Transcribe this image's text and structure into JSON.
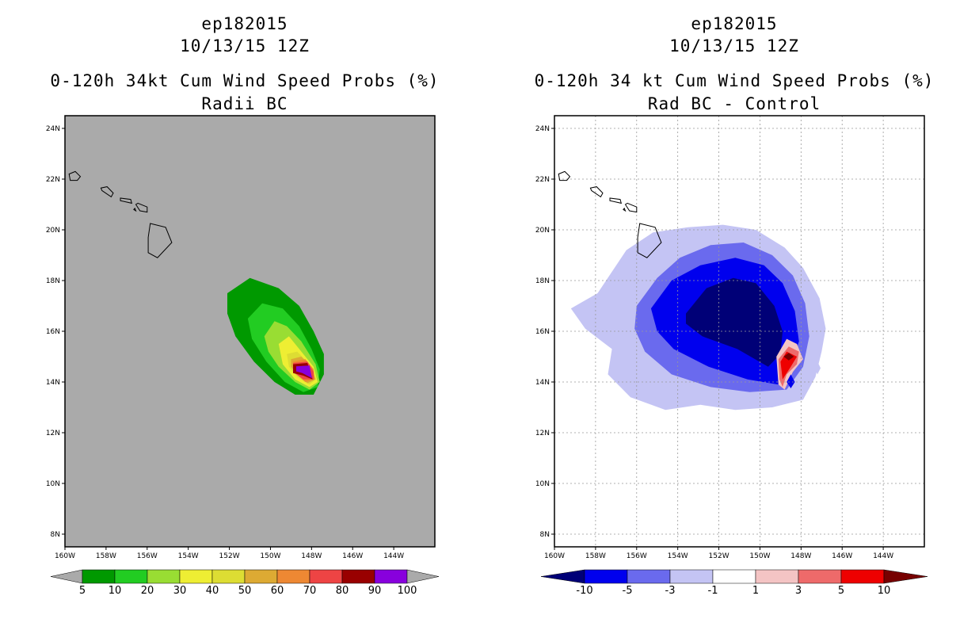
{
  "panels": [
    {
      "title_line1": "ep182015",
      "title_line2": "10/13/15 12Z",
      "title_line3": "0-120h 34kt Cum Wind Speed Probs (%)",
      "title_line4": "Radii BC",
      "background": "#aaaaaa",
      "grid": false
    },
    {
      "title_line1": "ep182015",
      "title_line2": "10/13/15 12Z",
      "title_line3": "0-120h 34 kt Cum Wind Speed Probs (%)",
      "title_line4": "Rad BC - Control",
      "background": "#ffffff",
      "grid": true
    }
  ],
  "chart_data": [
    {
      "type": "contour-map",
      "title": "0-120h 34kt Cum Wind Speed Probs (%)",
      "subtitle": "Radii BC",
      "storm": "ep182015",
      "valid": "10/13/15 12Z",
      "lon_ticks": [
        "160W",
        "158W",
        "156W",
        "154W",
        "152W",
        "150W",
        "148W",
        "146W",
        "144W"
      ],
      "lat_ticks": [
        "24N",
        "22N",
        "20N",
        "18N",
        "16N",
        "14N",
        "12N",
        "10N",
        "8N"
      ],
      "lon_range": [
        -160,
        -142
      ],
      "lat_range": [
        7.5,
        24.5
      ],
      "colorbar": {
        "labels": [
          "5",
          "10",
          "20",
          "30",
          "40",
          "50",
          "60",
          "70",
          "80",
          "90",
          "100"
        ],
        "colors": [
          "#009900",
          "#22cc22",
          "#99dd33",
          "#eeee33",
          "#dddd33",
          "#ddaa33",
          "#ee8833",
          "#ee4444",
          "#990000",
          "#8800dd"
        ],
        "end_colors": [
          "#aaaaaa",
          "#aaaaaa"
        ]
      },
      "contours": [
        {
          "level": 5,
          "color": "#009900",
          "points": [
            [
              -152.1,
              17.5
            ],
            [
              -151.0,
              18.1
            ],
            [
              -149.6,
              17.7
            ],
            [
              -148.6,
              17.0
            ],
            [
              -147.9,
              16.0
            ],
            [
              -147.4,
              15.1
            ],
            [
              -147.4,
              14.3
            ],
            [
              -147.9,
              13.5
            ],
            [
              -148.8,
              13.5
            ],
            [
              -149.8,
              14.0
            ],
            [
              -150.8,
              14.8
            ],
            [
              -151.7,
              15.8
            ],
            [
              -152.1,
              16.7
            ]
          ]
        },
        {
          "level": 10,
          "color": "#22cc22",
          "points": [
            [
              -151.1,
              16.5
            ],
            [
              -150.4,
              17.1
            ],
            [
              -149.4,
              16.9
            ],
            [
              -148.6,
              16.2
            ],
            [
              -148.0,
              15.3
            ],
            [
              -147.6,
              14.5
            ],
            [
              -147.7,
              13.8
            ],
            [
              -148.4,
              13.6
            ],
            [
              -149.3,
              14.0
            ],
            [
              -150.2,
              14.8
            ],
            [
              -150.9,
              15.7
            ]
          ]
        },
        {
          "level": 20,
          "color": "#99dd33",
          "points": [
            [
              -150.3,
              15.8
            ],
            [
              -149.8,
              16.4
            ],
            [
              -149.2,
              16.2
            ],
            [
              -148.5,
              15.6
            ],
            [
              -147.8,
              14.7
            ],
            [
              -147.6,
              14.0
            ],
            [
              -148.1,
              13.7
            ],
            [
              -148.8,
              14.0
            ],
            [
              -149.6,
              14.6
            ],
            [
              -150.1,
              15.2
            ]
          ]
        },
        {
          "level": 30,
          "color": "#eeee33",
          "points": [
            [
              -149.6,
              15.5
            ],
            [
              -149.1,
              15.8
            ],
            [
              -148.6,
              15.3
            ],
            [
              -147.9,
              14.6
            ],
            [
              -147.7,
              14.0
            ],
            [
              -148.1,
              13.8
            ],
            [
              -148.8,
              14.1
            ],
            [
              -149.4,
              14.7
            ]
          ]
        },
        {
          "level": 40,
          "color": "#dddd33",
          "points": [
            [
              -149.2,
              15.1
            ],
            [
              -148.7,
              15.2
            ],
            [
              -148.1,
              14.7
            ],
            [
              -147.8,
              14.1
            ],
            [
              -148.1,
              13.9
            ],
            [
              -148.7,
              14.2
            ],
            [
              -149.1,
              14.6
            ]
          ]
        },
        {
          "level": 50,
          "color": "#ddaa33",
          "points": [
            [
              -149.0,
              14.9
            ],
            [
              -148.5,
              15.0
            ],
            [
              -148.0,
              14.6
            ],
            [
              -147.8,
              14.1
            ],
            [
              -148.2,
              13.95
            ],
            [
              -148.7,
              14.3
            ],
            [
              -149.0,
              14.6
            ]
          ]
        },
        {
          "level": 60,
          "color": "#ee8833",
          "points": [
            [
              -148.9,
              14.8
            ],
            [
              -148.3,
              14.9
            ],
            [
              -147.9,
              14.5
            ],
            [
              -147.85,
              14.1
            ],
            [
              -148.3,
              14.0
            ],
            [
              -148.8,
              14.35
            ]
          ]
        },
        {
          "level": 70,
          "color": "#ee4444",
          "points": [
            [
              -148.9,
              14.75
            ],
            [
              -148.2,
              14.8
            ],
            [
              -147.9,
              14.4
            ],
            [
              -147.9,
              14.1
            ],
            [
              -148.4,
              14.1
            ],
            [
              -148.9,
              14.4
            ]
          ]
        },
        {
          "level": 80,
          "color": "#990000",
          "points": [
            [
              -148.9,
              14.7
            ],
            [
              -148.2,
              14.75
            ],
            [
              -147.95,
              14.1
            ],
            [
              -148.4,
              14.25
            ],
            [
              -148.9,
              14.35
            ]
          ]
        },
        {
          "level": 90,
          "color": "#8800dd",
          "points": [
            [
              -148.75,
              14.62
            ],
            [
              -148.1,
              14.65
            ],
            [
              -147.98,
              14.15
            ],
            [
              -148.45,
              14.35
            ],
            [
              -148.75,
              14.42
            ]
          ]
        }
      ]
    },
    {
      "type": "contour-map",
      "title": "0-120h 34 kt Cum Wind Speed Probs (%)",
      "subtitle": "Rad BC - Control",
      "storm": "ep182015",
      "valid": "10/13/15 12Z",
      "lon_ticks": [
        "160W",
        "158W",
        "156W",
        "154W",
        "152W",
        "150W",
        "148W",
        "146W",
        "144W"
      ],
      "lat_ticks": [
        "24N",
        "22N",
        "20N",
        "18N",
        "16N",
        "14N",
        "12N",
        "10N",
        "8N"
      ],
      "lon_range": [
        -160,
        -142
      ],
      "lat_range": [
        7.5,
        24.5
      ],
      "colorbar": {
        "labels": [
          "-10",
          "-5",
          "-3",
          "-1",
          "1",
          "3",
          "5",
          "10"
        ],
        "colors": [
          "#0000ee",
          "#6a6aee",
          "#c4c4f4",
          "#ffffff",
          "#f4c4c4",
          "#ee6a6a",
          "#ee0000"
        ],
        "end_colors": [
          "#000077",
          "#770000"
        ]
      },
      "contours": [
        {
          "level": -1,
          "color": "#c4c4f4",
          "points": [
            [
              -157.9,
              17.5
            ],
            [
              -156.5,
              19.2
            ],
            [
              -155.2,
              19.9
            ],
            [
              -153.5,
              20.1
            ],
            [
              -151.8,
              20.2
            ],
            [
              -150.2,
              20.0
            ],
            [
              -148.8,
              19.3
            ],
            [
              -147.9,
              18.5
            ],
            [
              -147.1,
              17.3
            ],
            [
              -146.8,
              16.1
            ],
            [
              -147.0,
              15.2
            ],
            [
              -147.3,
              14.2
            ],
            [
              -147.9,
              13.3
            ],
            [
              -149.4,
              13.0
            ],
            [
              -151.2,
              12.9
            ],
            [
              -152.9,
              13.1
            ],
            [
              -154.6,
              12.9
            ],
            [
              -156.3,
              13.4
            ],
            [
              -157.4,
              14.3
            ],
            [
              -157.2,
              15.3
            ],
            [
              -158.5,
              16.1
            ],
            [
              -159.2,
              16.9
            ]
          ]
        },
        {
          "level": -3,
          "color": "#6a6aee",
          "points": [
            [
              -156.0,
              17.0
            ],
            [
              -155.0,
              18.1
            ],
            [
              -153.9,
              18.9
            ],
            [
              -152.4,
              19.4
            ],
            [
              -150.8,
              19.5
            ],
            [
              -149.4,
              19.0
            ],
            [
              -148.4,
              18.2
            ],
            [
              -147.8,
              17.1
            ],
            [
              -147.6,
              15.8
            ],
            [
              -147.9,
              14.6
            ],
            [
              -148.7,
              13.7
            ],
            [
              -150.5,
              13.6
            ],
            [
              -152.4,
              13.8
            ],
            [
              -154.3,
              14.3
            ],
            [
              -155.6,
              15.2
            ],
            [
              -156.1,
              16.1
            ]
          ]
        },
        {
          "level": -5,
          "color": "#0000ee",
          "points": [
            [
              -155.3,
              16.9
            ],
            [
              -154.3,
              18.0
            ],
            [
              -152.9,
              18.6
            ],
            [
              -151.2,
              18.9
            ],
            [
              -149.8,
              18.6
            ],
            [
              -148.9,
              17.9
            ],
            [
              -148.3,
              16.8
            ],
            [
              -148.1,
              15.6
            ],
            [
              -148.5,
              14.6
            ],
            [
              -149.1,
              13.9
            ],
            [
              -150.6,
              14.1
            ],
            [
              -152.5,
              14.6
            ],
            [
              -154.2,
              15.3
            ],
            [
              -155.0,
              16.0
            ]
          ]
        },
        {
          "level": -10,
          "color": "#000077",
          "points": [
            [
              -153.6,
              16.7
            ],
            [
              -152.6,
              17.7
            ],
            [
              -151.3,
              18.1
            ],
            [
              -150.2,
              17.9
            ],
            [
              -149.3,
              17.0
            ],
            [
              -148.9,
              16.0
            ],
            [
              -149.0,
              15.1
            ],
            [
              -149.6,
              14.6
            ],
            [
              -151.1,
              15.3
            ],
            [
              -152.8,
              15.8
            ],
            [
              -153.6,
              16.3
            ]
          ]
        },
        {
          "level": 1,
          "color": "#f4c4c4",
          "points": [
            [
              -149.2,
              15.0
            ],
            [
              -148.7,
              15.7
            ],
            [
              -148.2,
              15.5
            ],
            [
              -147.9,
              14.9
            ],
            [
              -148.4,
              14.4
            ],
            [
              -148.8,
              13.7
            ],
            [
              -149.1,
              13.9
            ]
          ]
        },
        {
          "level": 3,
          "color": "#ee6a6a",
          "points": [
            [
              -149.1,
              14.9
            ],
            [
              -148.6,
              15.4
            ],
            [
              -148.1,
              15.2
            ],
            [
              -148.2,
              14.7
            ],
            [
              -148.7,
              14.3
            ],
            [
              -148.9,
              13.8
            ],
            [
              -149.05,
              14.1
            ]
          ]
        },
        {
          "level": 5,
          "color": "#ee0000",
          "points": [
            [
              -149.0,
              14.8
            ],
            [
              -148.7,
              15.2
            ],
            [
              -148.2,
              15.0
            ],
            [
              -148.5,
              14.6
            ],
            [
              -148.9,
              14.1
            ]
          ]
        },
        {
          "level": 10,
          "color": "#770000",
          "points": [
            [
              -148.6,
              15.15
            ],
            [
              -148.35,
              15.0
            ],
            [
              -148.6,
              14.85
            ],
            [
              -148.85,
              15.0
            ]
          ]
        },
        {
          "level": -5,
          "color": "#0000ee",
          "points": [
            [
              -148.5,
              14.3
            ],
            [
              -148.3,
              14.0
            ],
            [
              -148.5,
              13.75
            ],
            [
              -148.7,
              14.0
            ]
          ]
        }
      ],
      "stray_contours": [
        {
          "level": -1,
          "color": "#c4c4f4",
          "points": [
            [
              -147.2,
              14.8
            ],
            [
              -147.05,
              14.55
            ],
            [
              -147.2,
              14.3
            ],
            [
              -147.35,
              14.55
            ]
          ]
        }
      ]
    }
  ],
  "coastline": [
    [
      [
        -159.74,
        21.95
      ],
      [
        -159.4,
        21.95
      ],
      [
        -159.25,
        22.1
      ],
      [
        -159.5,
        22.3
      ],
      [
        -159.8,
        22.2
      ]
    ],
    [
      [
        -158.2,
        21.55
      ],
      [
        -157.75,
        21.3
      ],
      [
        -157.65,
        21.45
      ],
      [
        -157.95,
        21.7
      ],
      [
        -158.25,
        21.65
      ]
    ],
    [
      [
        -157.3,
        21.15
      ],
      [
        -156.75,
        21.05
      ],
      [
        -156.8,
        21.2
      ],
      [
        -157.3,
        21.25
      ]
    ],
    [
      [
        -156.55,
        21.0
      ],
      [
        -156.35,
        20.75
      ],
      [
        -156.0,
        20.7
      ],
      [
        -156.0,
        20.9
      ],
      [
        -156.45,
        21.05
      ]
    ],
    [
      [
        -156.65,
        20.8
      ],
      [
        -156.55,
        20.75
      ],
      [
        -156.6,
        20.85
      ]
    ],
    [
      [
        -155.85,
        20.25
      ],
      [
        -155.1,
        20.1
      ],
      [
        -154.8,
        19.5
      ],
      [
        -155.5,
        18.9
      ],
      [
        -155.95,
        19.1
      ],
      [
        -155.95,
        19.7
      ]
    ]
  ]
}
